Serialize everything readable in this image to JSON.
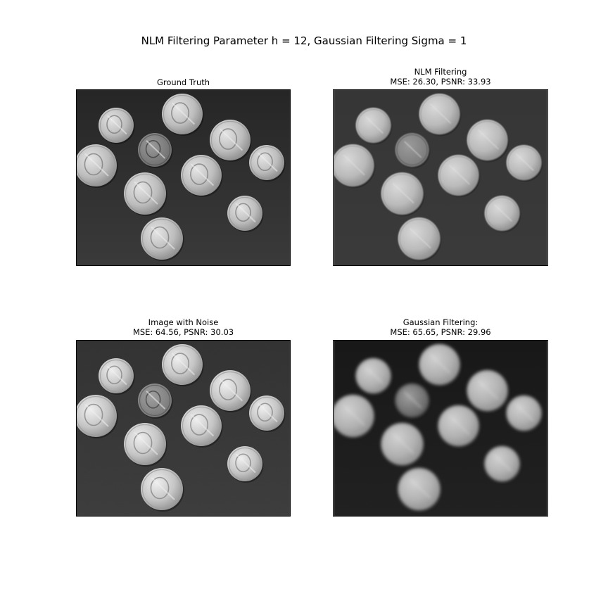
{
  "figure": {
    "suptitle": "NLM Filtering Parameter h = 12, Gaussian Filtering Sigma = 1"
  },
  "panels": [
    {
      "id": "ground_truth",
      "title": "Ground Truth",
      "subtitle": ""
    },
    {
      "id": "nlm",
      "title": "NLM Filtering",
      "subtitle": "MSE: 26.30, PSNR: 33.93"
    },
    {
      "id": "noisy",
      "title": "Image with Noise",
      "subtitle": "MSE: 64.56, PSNR: 30.03"
    },
    {
      "id": "gaussian",
      "title": "Gaussian Filtering:",
      "subtitle": "MSE: 65.65, PSNR: 29.96"
    }
  ],
  "coins": [
    {
      "kind": "dime"
    },
    {
      "kind": "quarter"
    },
    {
      "kind": "nickel"
    },
    {
      "kind": "nickel"
    },
    {
      "kind": "dime"
    },
    {
      "kind": "quarter"
    },
    {
      "kind": "nickel"
    },
    {
      "kind": "dime"
    },
    {
      "kind": "nickel"
    },
    {
      "kind": "nickel"
    }
  ]
}
